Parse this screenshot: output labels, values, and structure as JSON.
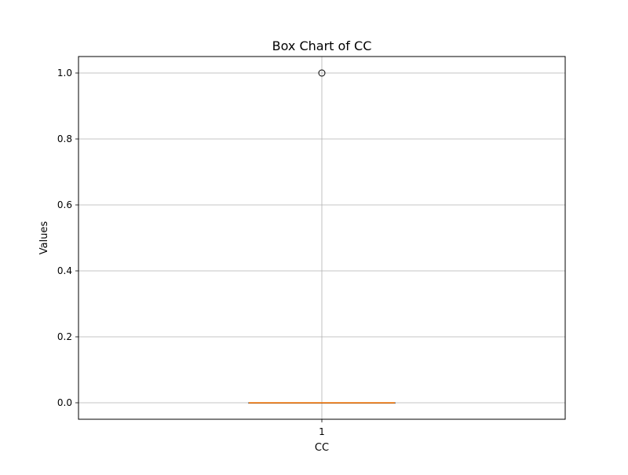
{
  "chart_data": {
    "type": "box",
    "title": "Box Chart of CC",
    "xlabel": "CC",
    "ylabel": "Values",
    "categories": [
      "1"
    ],
    "ylim": [
      -0.05,
      1.05
    ],
    "yticks": [
      0.0,
      0.2,
      0.4,
      0.6,
      0.8,
      1.0
    ],
    "ytick_labels": [
      "0.0",
      "0.2",
      "0.4",
      "0.6",
      "0.8",
      "1.0"
    ],
    "grid": true,
    "boxes": [
      {
        "name": "CC",
        "category": "1",
        "min": 0.0,
        "q1": 0.0,
        "median": 0.0,
        "q3": 0.0,
        "max": 0.0,
        "outliers": [
          1.0
        ]
      }
    ],
    "colors": {
      "median": "#ff7f0e",
      "box": "#000000",
      "grid": "#b0b0b0",
      "flier": "#000000"
    }
  }
}
